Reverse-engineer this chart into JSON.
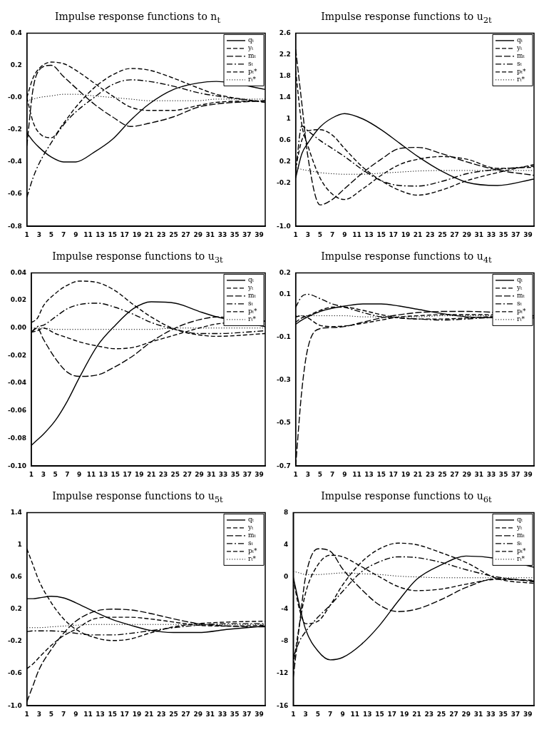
{
  "chart_data": [
    {
      "type": "line",
      "title": "Impulse response functions to n$_{t}$",
      "legend": "top right",
      "marker": "none",
      "x": [
        1,
        2,
        3,
        5,
        7,
        9,
        12,
        15,
        18,
        21,
        25,
        29,
        32,
        40
      ],
      "xlim": [
        1,
        40
      ],
      "xticks": [
        1,
        3,
        5,
        7,
        9,
        11,
        13,
        15,
        17,
        19,
        21,
        23,
        25,
        27,
        29,
        31,
        33,
        35,
        37,
        39
      ],
      "ylim": [
        -0.8,
        0.4
      ],
      "yticks": [
        {
          "value": -0.8,
          "label": "-0.8"
        },
        {
          "value": -0.6,
          "label": "-0.6"
        },
        {
          "value": -0.4,
          "label": "-0.4"
        },
        {
          "value": -0.2,
          "label": "-0.2"
        },
        {
          "value": 0,
          "label": "-0.0"
        },
        {
          "value": 0.2,
          "label": "0.2"
        },
        {
          "value": 0.4,
          "label": "0.4"
        }
      ],
      "series": [
        {
          "name": "qₜ",
          "color": "#000000",
          "line_style": "solid",
          "values": [
            -0.22,
            -0.27,
            -0.31,
            -0.37,
            -0.4,
            -0.4,
            -0.34,
            -0.26,
            -0.14,
            -0.04,
            0.05,
            0.09,
            0.1,
            0.05
          ]
        },
        {
          "name": "yₜ",
          "color": "#000000",
          "line_style": "dashed",
          "values": [
            0.0,
            0.12,
            0.18,
            0.22,
            0.21,
            0.17,
            0.09,
            0.01,
            -0.06,
            -0.08,
            -0.08,
            -0.05,
            -0.03,
            -0.02
          ]
        },
        {
          "name": "mₜ",
          "color": "#000000",
          "line_style": "dashed",
          "values": [
            -0.3,
            0.05,
            0.17,
            0.2,
            0.13,
            0.06,
            -0.04,
            -0.12,
            -0.18,
            -0.16,
            -0.12,
            -0.06,
            -0.04,
            -0.02
          ]
        },
        {
          "name": "sₜ",
          "color": "#000000",
          "line_style": "dashdot",
          "values": [
            -0.62,
            -0.5,
            -0.41,
            -0.28,
            -0.17,
            -0.09,
            0.0,
            0.08,
            0.11,
            0.1,
            0.07,
            0.03,
            0.01,
            -0.03
          ]
        },
        {
          "name": "pₜ*",
          "color": "#000000",
          "line_style": "dashed",
          "values": [
            0.0,
            -0.15,
            -0.22,
            -0.25,
            -0.16,
            -0.06,
            0.06,
            0.14,
            0.18,
            0.17,
            0.12,
            0.06,
            0.02,
            -0.03
          ]
        },
        {
          "name": "rₜ*",
          "color": "#000000",
          "line_style": "dotted",
          "values": [
            -0.02,
            -0.01,
            0.0,
            0.01,
            0.02,
            0.02,
            0.01,
            0.0,
            -0.01,
            -0.02,
            -0.02,
            -0.02,
            -0.01,
            -0.01
          ]
        }
      ]
    },
    {
      "type": "line",
      "title": "Impulse response functions to u$_{2t}$",
      "legend": "top right",
      "marker": "none",
      "x": [
        1,
        2,
        3,
        5,
        7,
        9,
        12,
        15,
        18,
        21,
        25,
        29,
        34,
        40
      ],
      "xlim": [
        1,
        40
      ],
      "xticks": [
        1,
        3,
        5,
        7,
        9,
        11,
        13,
        15,
        17,
        19,
        21,
        23,
        25,
        27,
        29,
        31,
        33,
        35,
        37,
        39
      ],
      "ylim": [
        -1.0,
        2.6
      ],
      "yticks": [
        {
          "value": -1.0,
          "label": "-1.0"
        },
        {
          "value": -0.2,
          "label": "-0.2"
        },
        0.2,
        0.6,
        1.0,
        1.4,
        1.8,
        2.2,
        2.6
      ],
      "series": [
        {
          "name": "qₜ",
          "color": "#000000",
          "line_style": "solid",
          "values": [
            -0.1,
            0.35,
            0.55,
            0.85,
            1.02,
            1.1,
            1.0,
            0.8,
            0.55,
            0.3,
            0.02,
            -0.18,
            -0.24,
            -0.12
          ]
        },
        {
          "name": "yₜ",
          "color": "#000000",
          "line_style": "dashed",
          "values": [
            1.9,
            0.9,
            0.5,
            -0.1,
            -0.4,
            -0.5,
            -0.3,
            -0.05,
            0.15,
            0.25,
            0.3,
            0.25,
            0.08,
            0.1
          ]
        },
        {
          "name": "mₜ",
          "color": "#000000",
          "line_style": "dashed",
          "values": [
            2.3,
            1.3,
            0.3,
            -0.6,
            -0.5,
            -0.3,
            0.0,
            0.25,
            0.45,
            0.47,
            0.35,
            0.2,
            0.05,
            -0.05
          ]
        },
        {
          "name": "sₜ",
          "color": "#000000",
          "line_style": "dashdot",
          "values": [
            0.0,
            0.87,
            0.78,
            0.6,
            0.45,
            0.3,
            0.05,
            -0.15,
            -0.24,
            -0.25,
            -0.16,
            -0.02,
            0.06,
            0.12
          ]
        },
        {
          "name": "pₜ*",
          "color": "#000000",
          "line_style": "dashed",
          "values": [
            0.1,
            0.6,
            0.78,
            0.8,
            0.7,
            0.45,
            0.1,
            -0.15,
            -0.33,
            -0.42,
            -0.32,
            -0.15,
            0.0,
            0.15
          ]
        },
        {
          "name": "rₜ*",
          "color": "#000000",
          "line_style": "dotted",
          "values": [
            0.1,
            0.06,
            0.04,
            0.0,
            -0.02,
            -0.03,
            -0.03,
            -0.01,
            0.01,
            0.03,
            0.04,
            0.04,
            0.04,
            0.04
          ]
        }
      ]
    },
    {
      "type": "line",
      "title": "Impulse response functions to u$_{3t}$",
      "legend": "top right",
      "marker": "none",
      "x": [
        1,
        2,
        3,
        5,
        7,
        9,
        12,
        15,
        18,
        21,
        25,
        29,
        32,
        40
      ],
      "xlim": [
        1,
        40
      ],
      "xticks": [
        1,
        3,
        5,
        7,
        9,
        11,
        13,
        15,
        17,
        19,
        21,
        23,
        25,
        27,
        29,
        31,
        33,
        35,
        37,
        39
      ],
      "ylim": [
        -0.1,
        0.04
      ],
      "yticks": [
        {
          "value": -0.1,
          "label": "-0.10"
        },
        {
          "value": -0.08,
          "label": "-0.08"
        },
        {
          "value": -0.06,
          "label": "-0.06"
        },
        {
          "value": -0.04,
          "label": "-0.04"
        },
        {
          "value": -0.02,
          "label": "-0.02"
        },
        {
          "value": 0,
          "label": "0.00"
        },
        {
          "value": 0.02,
          "label": "0.02"
        },
        {
          "value": 0.04,
          "label": "0.04"
        }
      ],
      "series": [
        {
          "name": "qₜ",
          "color": "#000000",
          "line_style": "solid",
          "values": [
            -0.085,
            -0.081,
            -0.077,
            -0.067,
            -0.053,
            -0.036,
            -0.013,
            0.002,
            0.014,
            0.019,
            0.018,
            0.012,
            0.008,
            0.001
          ]
        },
        {
          "name": "yₜ",
          "color": "#000000",
          "line_style": "dashed",
          "values": [
            -0.003,
            -0.002,
            0.0,
            -0.004,
            -0.007,
            -0.01,
            -0.013,
            -0.015,
            -0.014,
            -0.01,
            -0.005,
            0.0,
            0.003,
            0.005
          ]
        },
        {
          "name": "mₜ",
          "color": "#000000",
          "line_style": "dashed",
          "values": [
            -0.003,
            0.0,
            -0.008,
            -0.022,
            -0.032,
            -0.035,
            -0.034,
            -0.028,
            -0.02,
            -0.01,
            0.0,
            0.006,
            0.008,
            0.005
          ]
        },
        {
          "name": "sₜ",
          "color": "#000000",
          "line_style": "dashdot",
          "values": [
            -0.003,
            0.001,
            0.002,
            0.008,
            0.014,
            0.017,
            0.018,
            0.015,
            0.01,
            0.004,
            -0.001,
            -0.004,
            -0.004,
            -0.002
          ]
        },
        {
          "name": "pₜ*",
          "color": "#000000",
          "line_style": "dashed",
          "values": [
            0.004,
            0.007,
            0.016,
            0.025,
            0.031,
            0.034,
            0.033,
            0.027,
            0.017,
            0.008,
            -0.001,
            -0.005,
            -0.006,
            -0.004
          ]
        },
        {
          "name": "rₜ*",
          "color": "#000000",
          "line_style": "dotted",
          "values": [
            0.0,
            0.0,
            0.0,
            -0.001,
            -0.001,
            -0.001,
            -0.001,
            -0.001,
            -0.001,
            -0.001,
            0.0,
            0.0,
            0.0,
            0.0
          ]
        }
      ]
    },
    {
      "type": "line",
      "title": "Impulse response functions to u$_{4t}$",
      "legend": "top right",
      "marker": "none",
      "x": [
        1,
        2,
        3,
        5,
        7,
        9,
        12,
        15,
        18,
        21,
        25,
        29,
        32,
        40
      ],
      "xlim": [
        1,
        40
      ],
      "xticks": [
        1,
        3,
        5,
        7,
        9,
        11,
        13,
        15,
        17,
        19,
        21,
        23,
        25,
        27,
        29,
        31,
        33,
        35,
        37,
        39
      ],
      "ylim": [
        -0.7,
        0.2
      ],
      "yticks": [
        {
          "value": -0.7,
          "label": "-0.7"
        },
        {
          "value": -0.5,
          "label": "-0.5"
        },
        {
          "value": -0.3,
          "label": "-0.3"
        },
        {
          "value": -0.1,
          "label": "-0.1"
        },
        0.1,
        0.2
      ],
      "series": [
        {
          "name": "qₜ",
          "color": "#000000",
          "line_style": "solid",
          "values": [
            -0.04,
            -0.02,
            -0.005,
            0.02,
            0.035,
            0.045,
            0.055,
            0.055,
            0.045,
            0.03,
            0.01,
            -0.005,
            -0.008,
            -0.01
          ]
        },
        {
          "name": "yₜ",
          "color": "#000000",
          "line_style": "dashed",
          "values": [
            -0.005,
            0.0,
            -0.01,
            -0.045,
            -0.05,
            -0.048,
            -0.035,
            -0.02,
            -0.005,
            0.0,
            0.005,
            0.005,
            0.005,
            0.0
          ]
        },
        {
          "name": "mₜ",
          "color": "#000000",
          "line_style": "dashed",
          "values": [
            -0.7,
            -0.35,
            -0.15,
            -0.06,
            -0.055,
            -0.05,
            -0.03,
            -0.01,
            0.005,
            0.015,
            0.02,
            0.02,
            0.018,
            0.0
          ]
        },
        {
          "name": "sₜ",
          "color": "#000000",
          "line_style": "dashdot",
          "values": [
            0.04,
            0.09,
            0.1,
            0.08,
            0.055,
            0.04,
            0.015,
            -0.005,
            -0.01,
            -0.015,
            -0.02,
            -0.015,
            -0.01,
            0.0
          ]
        },
        {
          "name": "pₜ*",
          "color": "#000000",
          "line_style": "dashed",
          "values": [
            -0.03,
            -0.01,
            0.0,
            0.025,
            0.04,
            0.04,
            0.025,
            0.005,
            -0.01,
            -0.015,
            -0.015,
            -0.01,
            -0.005,
            0.0
          ]
        },
        {
          "name": "rₜ*",
          "color": "#000000",
          "line_style": "dotted",
          "values": [
            0.0,
            0.0,
            0.0,
            0.0,
            0.0,
            0.0,
            -0.005,
            -0.005,
            -0.005,
            -0.005,
            0.0,
            0.0,
            0.0,
            0.0
          ]
        }
      ]
    },
    {
      "type": "line",
      "title": "Impulse response functions to u$_{5t}$",
      "legend": "top right",
      "marker": "none",
      "x": [
        1,
        2,
        3,
        5,
        7,
        9,
        12,
        15,
        18,
        21,
        25,
        29,
        34,
        40
      ],
      "xlim": [
        1,
        40
      ],
      "xticks": [
        1,
        3,
        5,
        7,
        9,
        11,
        13,
        15,
        17,
        19,
        21,
        23,
        25,
        27,
        29,
        31,
        33,
        35,
        37,
        39
      ],
      "ylim": [
        -1.0,
        1.4
      ],
      "yticks": [
        {
          "value": -1.0,
          "label": "-1.0"
        },
        {
          "value": -0.6,
          "label": "-0.6"
        },
        {
          "value": -0.2,
          "label": "-0.2"
        },
        0.2,
        0.6,
        1.0,
        1.4
      ],
      "series": [
        {
          "name": "qₜ",
          "color": "#000000",
          "line_style": "solid",
          "values": [
            0.33,
            0.33,
            0.34,
            0.36,
            0.34,
            0.28,
            0.17,
            0.07,
            0.0,
            -0.06,
            -0.09,
            -0.09,
            -0.05,
            -0.01
          ]
        },
        {
          "name": "yₜ",
          "color": "#000000",
          "line_style": "dashed",
          "values": [
            -0.54,
            -0.48,
            -0.4,
            -0.25,
            -0.13,
            -0.05,
            0.08,
            0.1,
            0.1,
            0.08,
            0.04,
            0.0,
            -0.01,
            0.0
          ]
        },
        {
          "name": "mₜ",
          "color": "#000000",
          "line_style": "dashed",
          "values": [
            -0.95,
            -0.75,
            -0.55,
            -0.3,
            -0.1,
            0.05,
            0.17,
            0.2,
            0.19,
            0.15,
            0.08,
            0.02,
            -0.01,
            -0.02
          ]
        },
        {
          "name": "sₜ",
          "color": "#000000",
          "line_style": "dashdot",
          "values": [
            -0.08,
            -0.07,
            -0.07,
            -0.07,
            -0.08,
            -0.1,
            -0.12,
            -0.12,
            -0.1,
            -0.07,
            -0.03,
            0.0,
            0.02,
            0.02
          ]
        },
        {
          "name": "pₜ*",
          "color": "#000000",
          "line_style": "dashed",
          "values": [
            0.95,
            0.75,
            0.55,
            0.28,
            0.08,
            -0.05,
            -0.15,
            -0.19,
            -0.17,
            -0.1,
            -0.02,
            0.02,
            0.04,
            0.05
          ]
        },
        {
          "name": "rₜ*",
          "color": "#000000",
          "line_style": "dotted",
          "values": [
            -0.03,
            -0.03,
            -0.03,
            -0.02,
            -0.01,
            0.0,
            0.01,
            0.01,
            0.01,
            0.01,
            0.01,
            0.01,
            0.01,
            0.01
          ]
        }
      ]
    },
    {
      "type": "line",
      "title": "Impulse response functions to u$_{6t}$",
      "legend": "top right",
      "marker": "none",
      "x": [
        1,
        2,
        3,
        5,
        7,
        9,
        12,
        15,
        18,
        21,
        25,
        29,
        34,
        40
      ],
      "xlim": [
        1,
        40
      ],
      "xticks": [
        1,
        3,
        5,
        7,
        9,
        11,
        13,
        15,
        17,
        19,
        21,
        23,
        25,
        27,
        29,
        31,
        33,
        35,
        37,
        39
      ],
      "ylim": [
        -16,
        8
      ],
      "yticks": [
        -16,
        -12,
        -8,
        -4,
        0,
        4,
        8
      ],
      "series": [
        {
          "name": "qₜ",
          "color": "#000000",
          "line_style": "solid",
          "values": [
            0.0,
            -3.5,
            -6.5,
            -9.2,
            -10.3,
            -10.0,
            -8.4,
            -6.0,
            -3.0,
            -0.3,
            1.5,
            2.6,
            2.3,
            1.2
          ]
        },
        {
          "name": "yₜ",
          "color": "#000000",
          "line_style": "dashed",
          "values": [
            -11,
            -6,
            -2,
            1.5,
            2.7,
            2.5,
            1.3,
            0.0,
            -1.2,
            -1.7,
            -1.5,
            -0.9,
            -0.3,
            -0.4
          ]
        },
        {
          "name": "mₜ",
          "color": "#000000",
          "line_style": "dashed",
          "values": [
            -12.5,
            -6,
            0.0,
            3.5,
            3.2,
            1.0,
            -1.5,
            -3.5,
            -4.3,
            -4.0,
            -2.8,
            -1.3,
            -0.2,
            -0.5
          ]
        },
        {
          "name": "sₜ",
          "color": "#000000",
          "line_style": "dashdot",
          "values": [
            -10,
            -8,
            -6.8,
            -5.0,
            -3.5,
            -1.8,
            0.6,
            1.9,
            2.5,
            2.4,
            1.8,
            0.9,
            0.0,
            -0.6
          ]
        },
        {
          "name": "pₜ*",
          "color": "#000000",
          "line_style": "dashed",
          "values": [
            -0.2,
            -4,
            -5.8,
            -5.5,
            -3.5,
            -1.0,
            1.8,
            3.5,
            4.2,
            4.0,
            3.0,
            1.8,
            -0.2,
            -0.8
          ]
        },
        {
          "name": "rₜ*",
          "color": "#000000",
          "line_style": "dotted",
          "values": [
            0.7,
            0.5,
            0.3,
            0.3,
            0.4,
            0.5,
            0.4,
            0.3,
            0.1,
            0.0,
            -0.1,
            -0.1,
            -0.1,
            -0.1
          ]
        }
      ]
    }
  ]
}
